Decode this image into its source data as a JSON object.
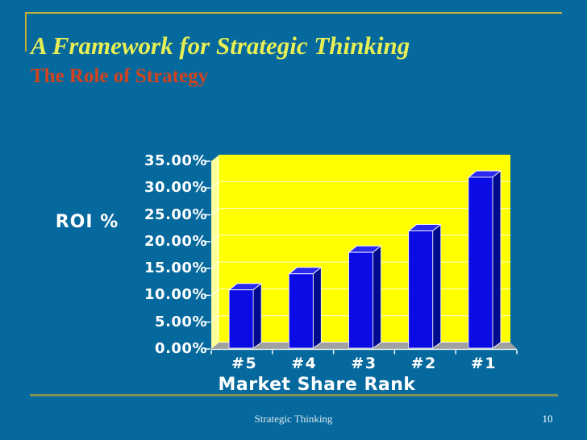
{
  "slide": {
    "title": "A Framework for Strategic Thinking",
    "subtitle": "The Role of Strategy",
    "footer_text": "Strategic Thinking",
    "page_number": "10",
    "colors": {
      "background": "#05699E",
      "title": "#E8EF55",
      "subtitle": "#D2431F",
      "top_rule": "#C4AF3B",
      "bottom_rule": "#7F9159",
      "footer_text_color": "#DCE7EE"
    }
  },
  "chart_data": {
    "type": "bar",
    "style": "3d-column",
    "title": "",
    "categories": [
      "#5",
      "#4",
      "#3",
      "#2",
      "#1"
    ],
    "values": [
      11,
      14,
      18,
      22,
      32
    ],
    "value_unit": "%",
    "xlabel": "Market Share Rank",
    "ylabel": "ROI %",
    "ylim": [
      0,
      35
    ],
    "y_step": 5,
    "y_tick_labels": [
      "35.00%",
      "30.00%",
      "25.00%",
      "20.00%",
      "15.00%",
      "10.00%",
      "5.00%",
      "0.00%"
    ],
    "grid": true,
    "legend": false,
    "colors": {
      "plot_background": "#FFFF00",
      "side_wall": "#FFFF9C",
      "gridline": "#FFFFFF",
      "floor": "#A1A1A1",
      "bar_front": "#0B0BE6",
      "bar_top": "#2B2BF0",
      "bar_side": "#000A8C",
      "axis_tick": "#FFFFFF",
      "axis_label": "#FFFFFF"
    }
  }
}
